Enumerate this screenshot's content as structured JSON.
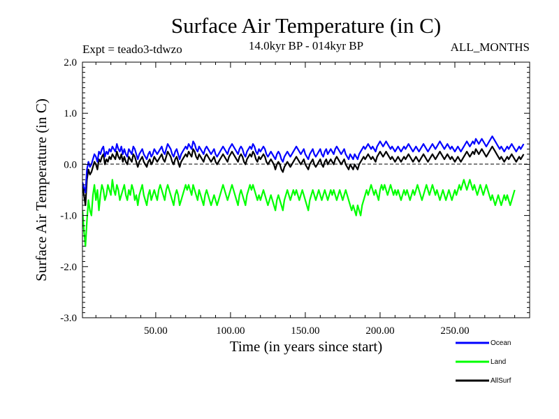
{
  "chart_data": {
    "type": "line",
    "title": "Surface Air Temperature (in C)",
    "subtitle": "14.0kyr BP - 014kyr BP",
    "experiment_label": "Expt = teado3-tdwzo",
    "season_label": "ALL_MONTHS",
    "xlabel": "Time (in years since start)",
    "ylabel": "Surface Air Temperature (in C)",
    "xlim": [
      1,
      300
    ],
    "ylim": [
      -3.0,
      2.0
    ],
    "x_ticks": [
      50,
      100,
      150,
      200,
      250
    ],
    "x_tick_labels": [
      "50.00",
      "100.00",
      "150.00",
      "200.00",
      "250.00"
    ],
    "y_ticks": [
      -3.0,
      -2.0,
      -1.0,
      0.0,
      1.0,
      2.0
    ],
    "y_tick_labels": [
      "-3.0",
      "-2.0",
      "-1.0",
      "0.0",
      "1.0",
      "2.0"
    ],
    "reference_line": 0.0,
    "series_order_drawn": [
      "AllSurf",
      "Land",
      "Ocean"
    ],
    "series": [
      {
        "name": "Ocean",
        "color": "#0000ff",
        "x_step": 1,
        "values": [
          -0.35,
          -0.45,
          -0.55,
          -0.1,
          0.05,
          -0.05,
          0.0,
          0.1,
          0.2,
          0.15,
          0.05,
          0.25,
          0.2,
          0.3,
          0.35,
          0.15,
          0.25,
          0.2,
          0.3,
          0.25,
          0.35,
          0.3,
          0.25,
          0.4,
          0.3,
          0.25,
          0.35,
          0.2,
          0.3,
          0.2,
          0.15,
          0.3,
          0.25,
          0.2,
          0.35,
          0.3,
          0.2,
          0.1,
          0.2,
          0.25,
          0.3,
          0.2,
          0.15,
          0.1,
          0.2,
          0.25,
          0.15,
          0.2,
          0.3,
          0.25,
          0.2,
          0.25,
          0.3,
          0.35,
          0.25,
          0.2,
          0.3,
          0.4,
          0.35,
          0.3,
          0.2,
          0.15,
          0.25,
          0.3,
          0.2,
          0.1,
          0.2,
          0.25,
          0.3,
          0.35,
          0.3,
          0.4,
          0.35,
          0.3,
          0.45,
          0.4,
          0.3,
          0.25,
          0.35,
          0.3,
          0.25,
          0.2,
          0.3,
          0.35,
          0.3,
          0.25,
          0.2,
          0.25,
          0.3,
          0.2,
          0.15,
          0.2,
          0.25,
          0.3,
          0.35,
          0.3,
          0.25,
          0.2,
          0.3,
          0.35,
          0.4,
          0.35,
          0.3,
          0.25,
          0.2,
          0.3,
          0.35,
          0.3,
          0.2,
          0.15,
          0.25,
          0.3,
          0.35,
          0.3,
          0.4,
          0.35,
          0.25,
          0.2,
          0.3,
          0.25,
          0.3,
          0.35,
          0.3,
          0.2,
          0.15,
          0.2,
          0.25,
          0.2,
          0.15,
          0.1,
          0.2,
          0.25,
          0.2,
          0.1,
          0.05,
          0.15,
          0.2,
          0.25,
          0.2,
          0.15,
          0.2,
          0.25,
          0.3,
          0.35,
          0.3,
          0.25,
          0.2,
          0.25,
          0.3,
          0.2,
          0.15,
          0.1,
          0.2,
          0.25,
          0.3,
          0.2,
          0.15,
          0.2,
          0.25,
          0.3,
          0.2,
          0.15,
          0.25,
          0.3,
          0.2,
          0.25,
          0.3,
          0.25,
          0.2,
          0.3,
          0.35,
          0.3,
          0.25,
          0.2,
          0.25,
          0.3,
          0.2,
          0.15,
          0.1,
          0.2,
          0.15,
          0.1,
          0.2,
          0.15,
          0.1,
          0.2,
          0.25,
          0.3,
          0.35,
          0.3,
          0.35,
          0.4,
          0.35,
          0.3,
          0.35,
          0.3,
          0.25,
          0.35,
          0.4,
          0.45,
          0.4,
          0.35,
          0.4,
          0.45,
          0.4,
          0.35,
          0.3,
          0.35,
          0.3,
          0.25,
          0.3,
          0.35,
          0.3,
          0.25,
          0.3,
          0.35,
          0.3,
          0.35,
          0.4,
          0.35,
          0.3,
          0.25,
          0.3,
          0.35,
          0.3,
          0.25,
          0.3,
          0.35,
          0.4,
          0.35,
          0.3,
          0.25,
          0.3,
          0.35,
          0.4,
          0.35,
          0.3,
          0.35,
          0.4,
          0.45,
          0.4,
          0.35,
          0.3,
          0.35,
          0.4,
          0.35,
          0.3,
          0.35,
          0.3,
          0.25,
          0.3,
          0.35,
          0.3,
          0.25,
          0.3,
          0.35,
          0.4,
          0.45,
          0.4,
          0.35,
          0.4,
          0.45,
          0.4,
          0.5,
          0.45,
          0.4,
          0.45,
          0.5,
          0.45,
          0.4,
          0.35,
          0.4,
          0.45,
          0.5,
          0.55,
          0.5,
          0.45,
          0.4,
          0.35,
          0.3,
          0.35,
          0.3,
          0.25,
          0.3,
          0.35,
          0.3,
          0.35,
          0.4,
          0.35,
          0.3,
          0.25,
          0.3,
          0.35,
          0.3,
          0.35,
          0.4
        ]
      },
      {
        "name": "Land",
        "color": "#00ff00",
        "x_step": 1,
        "values": [
          -0.9,
          -1.3,
          -1.6,
          -1.1,
          -0.7,
          -0.9,
          -1.0,
          -0.6,
          -0.4,
          -0.7,
          -0.5,
          -0.9,
          -0.6,
          -0.4,
          -0.5,
          -0.7,
          -0.6,
          -0.4,
          -0.5,
          -0.6,
          -0.3,
          -0.5,
          -0.6,
          -0.4,
          -0.5,
          -0.7,
          -0.6,
          -0.5,
          -0.4,
          -0.6,
          -0.7,
          -0.5,
          -0.6,
          -0.4,
          -0.5,
          -0.7,
          -0.6,
          -0.8,
          -0.6,
          -0.5,
          -0.4,
          -0.6,
          -0.7,
          -0.8,
          -0.6,
          -0.5,
          -0.7,
          -0.6,
          -0.5,
          -0.6,
          -0.7,
          -0.5,
          -0.4,
          -0.5,
          -0.6,
          -0.7,
          -0.5,
          -0.4,
          -0.5,
          -0.6,
          -0.7,
          -0.8,
          -0.6,
          -0.5,
          -0.6,
          -0.8,
          -0.7,
          -0.6,
          -0.5,
          -0.4,
          -0.5,
          -0.4,
          -0.5,
          -0.6,
          -0.4,
          -0.5,
          -0.6,
          -0.7,
          -0.5,
          -0.6,
          -0.7,
          -0.8,
          -0.6,
          -0.5,
          -0.6,
          -0.7,
          -0.8,
          -0.7,
          -0.6,
          -0.7,
          -0.8,
          -0.7,
          -0.6,
          -0.5,
          -0.4,
          -0.5,
          -0.6,
          -0.7,
          -0.6,
          -0.5,
          -0.4,
          -0.5,
          -0.6,
          -0.7,
          -0.8,
          -0.6,
          -0.5,
          -0.6,
          -0.7,
          -0.8,
          -0.6,
          -0.5,
          -0.4,
          -0.5,
          -0.4,
          -0.5,
          -0.6,
          -0.7,
          -0.6,
          -0.7,
          -0.6,
          -0.5,
          -0.6,
          -0.7,
          -0.8,
          -0.7,
          -0.6,
          -0.7,
          -0.8,
          -0.9,
          -0.7,
          -0.6,
          -0.7,
          -0.8,
          -0.9,
          -0.7,
          -0.6,
          -0.5,
          -0.6,
          -0.7,
          -0.6,
          -0.5,
          -0.6,
          -0.5,
          -0.6,
          -0.7,
          -0.6,
          -0.5,
          -0.6,
          -0.7,
          -0.8,
          -0.9,
          -0.7,
          -0.6,
          -0.5,
          -0.6,
          -0.7,
          -0.6,
          -0.5,
          -0.6,
          -0.7,
          -0.6,
          -0.5,
          -0.6,
          -0.7,
          -0.6,
          -0.5,
          -0.6,
          -0.5,
          -0.6,
          -0.7,
          -0.6,
          -0.5,
          -0.6,
          -0.7,
          -0.6,
          -0.5,
          -0.6,
          -0.7,
          -0.8,
          -0.9,
          -0.8,
          -0.9,
          -1.0,
          -0.8,
          -0.9,
          -1.0,
          -0.8,
          -0.7,
          -0.6,
          -0.5,
          -0.6,
          -0.5,
          -0.4,
          -0.5,
          -0.6,
          -0.5,
          -0.6,
          -0.7,
          -0.5,
          -0.4,
          -0.5,
          -0.4,
          -0.5,
          -0.6,
          -0.5,
          -0.4,
          -0.5,
          -0.6,
          -0.5,
          -0.6,
          -0.5,
          -0.6,
          -0.7,
          -0.6,
          -0.5,
          -0.6,
          -0.5,
          -0.6,
          -0.7,
          -0.6,
          -0.5,
          -0.6,
          -0.5,
          -0.4,
          -0.5,
          -0.6,
          -0.7,
          -0.6,
          -0.5,
          -0.4,
          -0.5,
          -0.6,
          -0.5,
          -0.4,
          -0.5,
          -0.6,
          -0.5,
          -0.6,
          -0.7,
          -0.6,
          -0.5,
          -0.6,
          -0.7,
          -0.6,
          -0.5,
          -0.6,
          -0.7,
          -0.6,
          -0.5,
          -0.6,
          -0.5,
          -0.4,
          -0.5,
          -0.4,
          -0.3,
          -0.4,
          -0.5,
          -0.4,
          -0.3,
          -0.4,
          -0.5,
          -0.4,
          -0.5,
          -0.6,
          -0.5,
          -0.4,
          -0.5,
          -0.6,
          -0.5,
          -0.4,
          -0.5,
          -0.6,
          -0.7,
          -0.6,
          -0.7,
          -0.8,
          -0.7,
          -0.6,
          -0.7,
          -0.8,
          -0.7,
          -0.6,
          -0.7,
          -0.6,
          -0.7,
          -0.8,
          -0.7,
          -0.6,
          -0.5
        ]
      },
      {
        "name": "AllSurf",
        "color": "#000000",
        "x_step": 1,
        "values": [
          -0.4,
          -0.6,
          -0.8,
          -0.3,
          -0.1,
          -0.2,
          -0.15,
          -0.05,
          0.05,
          0.0,
          -0.1,
          0.1,
          0.05,
          0.15,
          0.2,
          0.0,
          0.1,
          0.05,
          0.15,
          0.1,
          0.2,
          0.15,
          0.1,
          0.25,
          0.15,
          0.1,
          0.2,
          0.05,
          0.15,
          0.05,
          0.0,
          0.15,
          0.1,
          0.05,
          0.2,
          0.15,
          0.05,
          -0.05,
          0.05,
          0.1,
          0.15,
          0.05,
          0.0,
          -0.05,
          0.05,
          0.1,
          0.0,
          0.05,
          0.15,
          0.1,
          0.05,
          0.1,
          0.15,
          0.2,
          0.1,
          0.05,
          0.15,
          0.25,
          0.2,
          0.15,
          0.05,
          0.0,
          0.1,
          0.15,
          0.05,
          -0.05,
          0.05,
          0.1,
          0.15,
          0.2,
          0.15,
          0.25,
          0.2,
          0.15,
          0.3,
          0.25,
          0.15,
          0.1,
          0.2,
          0.15,
          0.1,
          0.05,
          0.15,
          0.2,
          0.15,
          0.1,
          0.05,
          0.1,
          0.15,
          0.05,
          0.0,
          0.05,
          0.1,
          0.15,
          0.2,
          0.15,
          0.1,
          0.05,
          0.15,
          0.2,
          0.25,
          0.2,
          0.15,
          0.1,
          0.05,
          0.15,
          0.2,
          0.15,
          0.05,
          0.0,
          0.1,
          0.15,
          0.2,
          0.15,
          0.25,
          0.2,
          0.1,
          0.05,
          0.15,
          0.1,
          0.15,
          0.2,
          0.15,
          0.05,
          0.0,
          0.05,
          0.1,
          0.05,
          0.0,
          -0.1,
          0.0,
          0.05,
          0.0,
          -0.1,
          -0.15,
          -0.05,
          0.0,
          0.05,
          0.0,
          -0.05,
          0.0,
          0.05,
          0.1,
          0.15,
          0.1,
          0.05,
          0.0,
          0.05,
          0.1,
          0.0,
          -0.05,
          -0.1,
          0.0,
          0.05,
          0.1,
          0.0,
          -0.05,
          0.0,
          0.05,
          0.1,
          0.0,
          -0.05,
          0.05,
          0.1,
          0.0,
          0.05,
          0.1,
          0.05,
          0.0,
          0.1,
          0.15,
          0.1,
          0.05,
          0.0,
          0.05,
          0.1,
          0.0,
          -0.05,
          -0.1,
          0.0,
          -0.05,
          -0.1,
          0.0,
          -0.05,
          -0.1,
          0.0,
          0.05,
          0.1,
          0.15,
          0.1,
          0.15,
          0.2,
          0.15,
          0.1,
          0.15,
          0.1,
          0.05,
          0.15,
          0.2,
          0.25,
          0.2,
          0.15,
          0.2,
          0.25,
          0.2,
          0.15,
          0.1,
          0.15,
          0.1,
          0.05,
          0.1,
          0.15,
          0.1,
          0.05,
          0.1,
          0.15,
          0.1,
          0.15,
          0.2,
          0.15,
          0.1,
          0.05,
          0.1,
          0.15,
          0.1,
          0.05,
          0.1,
          0.15,
          0.2,
          0.15,
          0.1,
          0.05,
          0.1,
          0.15,
          0.2,
          0.15,
          0.1,
          0.15,
          0.2,
          0.25,
          0.2,
          0.15,
          0.1,
          0.15,
          0.2,
          0.15,
          0.1,
          0.15,
          0.1,
          0.05,
          0.1,
          0.15,
          0.1,
          0.05,
          0.1,
          0.15,
          0.2,
          0.25,
          0.2,
          0.15,
          0.2,
          0.25,
          0.2,
          0.3,
          0.25,
          0.2,
          0.25,
          0.3,
          0.25,
          0.2,
          0.15,
          0.2,
          0.25,
          0.3,
          0.35,
          0.3,
          0.25,
          0.2,
          0.15,
          0.1,
          0.15,
          0.1,
          0.05,
          0.1,
          0.15,
          0.1,
          0.15,
          0.2,
          0.15,
          0.1,
          0.05,
          0.1,
          0.15,
          0.1,
          0.15,
          0.2
        ]
      }
    ]
  }
}
